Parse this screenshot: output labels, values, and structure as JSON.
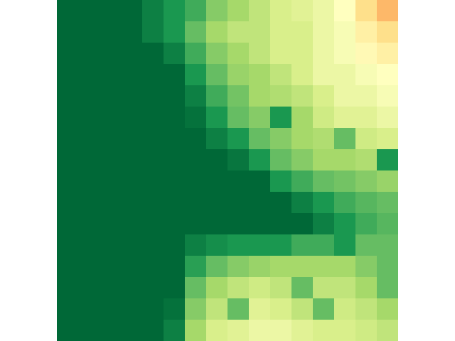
{
  "chart_data": {
    "type": "heatmap",
    "tick_labels": false,
    "zlim": [
      0,
      1
    ],
    "cells": [
      [
        0,
        0,
        0,
        0,
        0.05,
        0.1,
        0.15,
        0.25,
        0.3,
        0.35,
        0.4,
        0.42,
        0.45,
        0.5,
        0.6,
        0.68
      ],
      [
        0,
        0,
        0,
        0,
        0.05,
        0.1,
        0.2,
        0.3,
        0.35,
        0.35,
        0.4,
        0.4,
        0.45,
        0.48,
        0.55,
        0.6
      ],
      [
        0,
        0,
        0,
        0,
        0,
        0.05,
        0.15,
        0.25,
        0.3,
        0.35,
        0.4,
        0.4,
        0.45,
        0.48,
        0.52,
        0.55
      ],
      [
        0,
        0,
        0,
        0,
        0,
        0,
        0.1,
        0.2,
        0.28,
        0.3,
        0.35,
        0.4,
        0.45,
        0.45,
        0.48,
        0.5
      ],
      [
        0,
        0,
        0,
        0,
        0,
        0,
        0.05,
        0.15,
        0.22,
        0.3,
        0.32,
        0.35,
        0.4,
        0.45,
        0.45,
        0.48
      ],
      [
        0,
        0,
        0,
        0,
        0,
        0,
        0.02,
        0.1,
        0.2,
        0.25,
        0.1,
        0.3,
        0.38,
        0.42,
        0.42,
        0.45
      ],
      [
        0,
        0,
        0,
        0,
        0,
        0,
        0,
        0.05,
        0.1,
        0.2,
        0.25,
        0.3,
        0.32,
        0.2,
        0.38,
        0.4
      ],
      [
        0,
        0,
        0,
        0,
        0,
        0,
        0,
        0,
        0.03,
        0.1,
        0.2,
        0.25,
        0.3,
        0.3,
        0.32,
        0.1
      ],
      [
        0,
        0,
        0,
        0,
        0,
        0,
        0,
        0,
        0,
        0,
        0.1,
        0.15,
        0.2,
        0.22,
        0.25,
        0.28
      ],
      [
        0,
        0,
        0,
        0,
        0,
        0,
        0,
        0,
        0,
        0,
        0,
        0.05,
        0.1,
        0.15,
        0.18,
        0.2
      ],
      [
        0,
        0,
        0,
        0,
        0,
        0,
        0,
        0,
        0,
        0,
        0,
        0,
        0.05,
        0.1,
        0.15,
        0.18
      ],
      [
        0,
        0,
        0,
        0,
        0,
        0,
        0.05,
        0.08,
        0.1,
        0.1,
        0.1,
        0.15,
        0.15,
        0.1,
        0.2,
        0.2
      ],
      [
        0,
        0,
        0,
        0,
        0,
        0,
        0.12,
        0.2,
        0.25,
        0.28,
        0.3,
        0.3,
        0.3,
        0.3,
        0.25,
        0.2
      ],
      [
        0,
        0,
        0,
        0,
        0,
        0,
        0.2,
        0.3,
        0.35,
        0.38,
        0.35,
        0.2,
        0.35,
        0.35,
        0.3,
        0.2
      ],
      [
        0,
        0,
        0,
        0,
        0,
        0.02,
        0.25,
        0.35,
        0.2,
        0.42,
        0.4,
        0.35,
        0.2,
        0.38,
        0.35,
        0.3
      ],
      [
        0,
        0,
        0,
        0,
        0,
        0.05,
        0.3,
        0.4,
        0.42,
        0.45,
        0.45,
        0.42,
        0.4,
        0.4,
        0.38,
        0.35
      ]
    ]
  }
}
